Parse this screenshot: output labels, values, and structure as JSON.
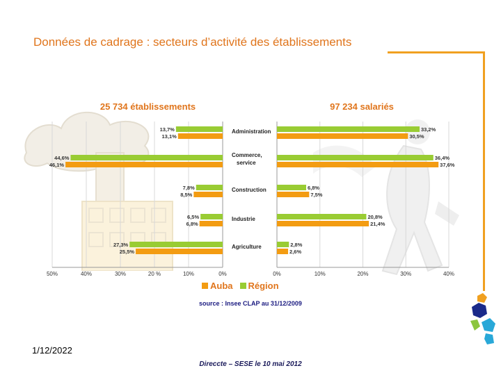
{
  "slide": {
    "title": "Données de cadrage : secteurs d’activité des établissements",
    "date": "1/12/2022",
    "footer": "Direccte – SESE le 10 mai 2012",
    "accent_color": "#e0751c"
  },
  "chart_data": {
    "type": "bar",
    "orientation": "horizontal-butterfly",
    "categories": [
      "Administration",
      "Commerce, service",
      "Construction",
      "Industrie",
      "Agriculture"
    ],
    "panels": [
      {
        "title": "25 734 établissements",
        "direction": "left",
        "xlim": [
          0,
          50
        ],
        "ticks": [
          "50%",
          "40%",
          "30%",
          "20 %",
          "10%",
          "0%"
        ],
        "series": [
          {
            "name": "Région",
            "color": "#99cc33",
            "values": [
              13.7,
              44.6,
              7.8,
              6.5,
              27.3
            ],
            "labels": [
              "13,7%",
              "44,6%",
              "7,8%",
              "6,5%",
              "27,3%"
            ]
          },
          {
            "name": "Auba",
            "color": "#f39c12",
            "values": [
              13.1,
              46.1,
              8.5,
              6.8,
              25.5
            ],
            "labels": [
              "13,1%",
              "46,1%",
              "8,5%",
              "6,8%",
              "25,5%"
            ]
          }
        ]
      },
      {
        "title": "97 234 salariés",
        "direction": "right",
        "xlim": [
          0,
          40
        ],
        "ticks": [
          "0%",
          "10%",
          "20%",
          "30%",
          "40%"
        ],
        "series": [
          {
            "name": "Région",
            "color": "#99cc33",
            "values": [
              33.2,
              36.4,
              6.8,
              20.8,
              2.8
            ],
            "labels": [
              "33,2%",
              "36,4%",
              "6,8%",
              "20,8%",
              "2,8%"
            ]
          },
          {
            "name": "Auba",
            "color": "#f39c12",
            "values": [
              30.5,
              37.6,
              7.5,
              21.4,
              2.6
            ],
            "labels": [
              "30,5%",
              "37,6%",
              "7,5%",
              "21,4%",
              "2,6%"
            ]
          }
        ]
      }
    ],
    "legend": [
      "Auba",
      "Région"
    ],
    "source": "source : Insee CLAP au 31/12/2009"
  }
}
